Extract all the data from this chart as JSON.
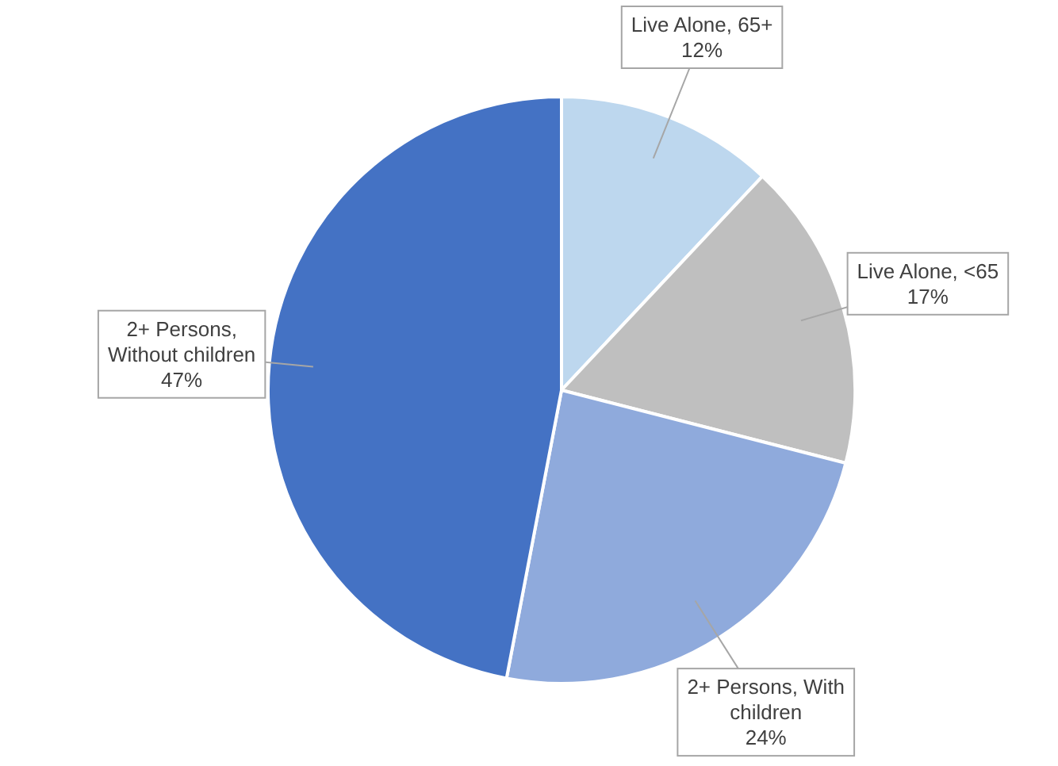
{
  "chart_data": {
    "type": "pie",
    "categories": [
      "Live Alone, 65+",
      "Live Alone, <65",
      "2+ Persons, With children",
      "2+ Persons, Without children"
    ],
    "values": [
      12,
      17,
      24,
      47
    ],
    "colors": [
      "#bdd7ee",
      "#bfbfbf",
      "#8faadc",
      "#4472c4"
    ],
    "value_labels": [
      "12%",
      "17%",
      "24%",
      "47%"
    ],
    "legend": false
  }
}
